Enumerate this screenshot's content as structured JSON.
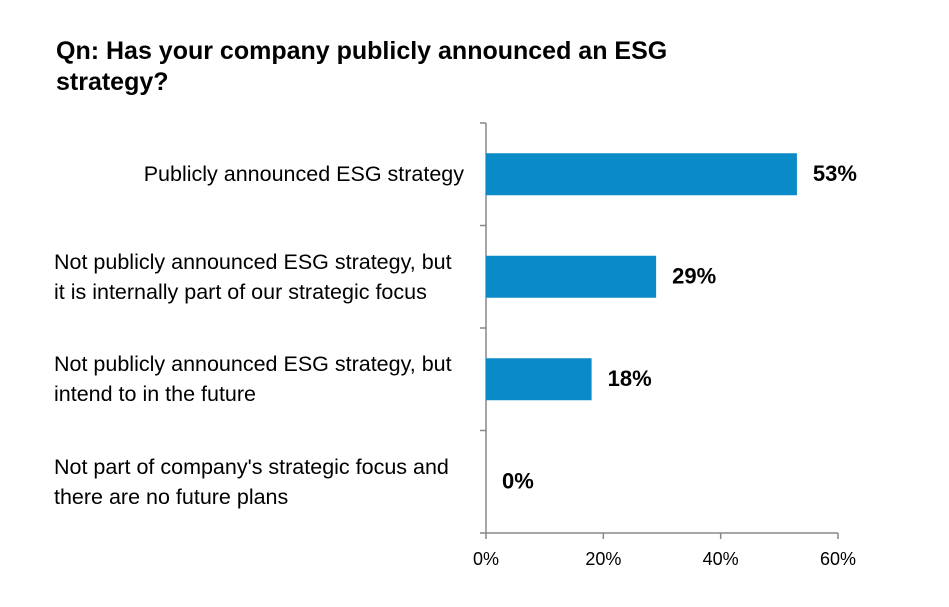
{
  "chart_data": {
    "type": "barh",
    "title": "Qn: Has your company publicly announced an ESG strategy?",
    "categories": [
      "Publicly announced ESG strategy",
      "Not publicly announced ESG strategy, but it is internally part of our strategic focus",
      "Not publicly announced ESG strategy, but intend to in the future",
      "Not part of company's strategic focus and there are no future plans"
    ],
    "values": [
      53,
      29,
      18,
      0
    ],
    "value_labels": [
      "53%",
      "29%",
      "18%",
      "0%"
    ],
    "color": "#0a8ac6",
    "xlim": [
      0,
      60
    ],
    "xticks": [
      {
        "value": 0,
        "label": "0%"
      },
      {
        "value": 20,
        "label": "20%"
      },
      {
        "value": 40,
        "label": "40%"
      },
      {
        "value": 60,
        "label": "60%"
      }
    ],
    "grid": false
  }
}
